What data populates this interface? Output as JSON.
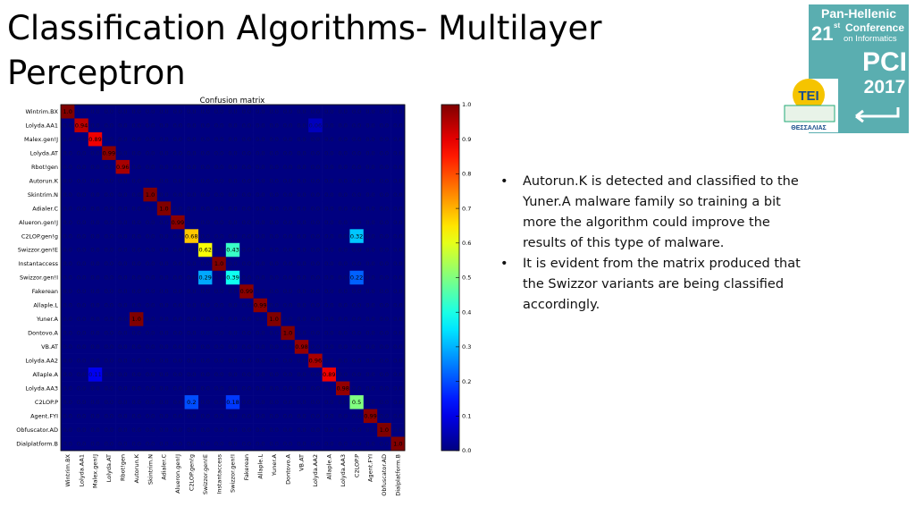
{
  "slide": {
    "title_lines": [
      "Classification Algorithms- Multilayer",
      "Perceptron"
    ],
    "bullets": [
      [
        "Autorun.K is detected and classified to the",
        "Yuner.A malware family so training a bit",
        "more the algorithm could improve the",
        "results of this type of malware."
      ],
      [
        "It is evident from the matrix produced that",
        "the Swizzor variants are being classified",
        "accordingly."
      ]
    ],
    "logo": {
      "line1": "Pan-Hellenic",
      "edition": "21",
      "edition_suffix": "st",
      "line2": "Conference",
      "line3": "on Informatics",
      "acronym": "PCI",
      "year": "2017",
      "tei": "TEI",
      "tei_sub": "ΘΕΣΣΑΛΙΑΣ"
    }
  },
  "chart_data": {
    "type": "heatmap",
    "title": "Confusion matrix",
    "colormap": "jet",
    "categories": [
      "Wintrim.BX",
      "Lolyda.AA1",
      "Malex.gen!J",
      "Lolyda.AT",
      "Rbot!gen",
      "Autorun.K",
      "Skintrim.N",
      "Adialer.C",
      "Alueron.gen!J",
      "C2LOP.gen!g",
      "Swizzor.gen!E",
      "Instantaccess",
      "Swizzor.gen!I",
      "Fakerean",
      "Allaple.L",
      "Yuner.A",
      "Dontovo.A",
      "VB.AT",
      "Lolyda.AA2",
      "Allaple.A",
      "Lolyda.AA3",
      "C2LOP.P",
      "Agent.FYI",
      "Obfuscator.AD",
      "Dialplatform.B"
    ],
    "zlim": [
      0,
      1
    ],
    "zticks": [
      {
        "value": 0,
        "label": "0.0"
      },
      {
        "value": 0.1,
        "label": "0.1"
      },
      {
        "value": 0.2,
        "label": "0.2"
      },
      {
        "value": 0.3,
        "label": "0.3"
      },
      {
        "value": 0.4,
        "label": "0.4"
      },
      {
        "value": 0.5,
        "label": "0.5"
      },
      {
        "value": 0.6,
        "label": "0.6"
      },
      {
        "value": 0.7,
        "label": "0.7"
      },
      {
        "value": 0.8,
        "label": "0.8"
      },
      {
        "value": 0.9,
        "label": "0.9"
      },
      {
        "value": 1,
        "label": "1.0"
      }
    ],
    "values": [
      [
        1,
        0,
        0,
        0,
        0,
        0,
        0,
        0,
        0,
        0,
        0,
        0,
        0,
        0,
        0,
        0,
        0,
        0,
        0,
        0,
        0,
        0,
        0,
        0,
        0
      ],
      [
        0,
        0.94,
        0,
        0,
        0,
        0,
        0,
        0,
        0,
        0,
        0,
        0,
        0,
        0,
        0,
        0,
        0,
        0,
        0.06,
        0,
        0,
        0,
        0,
        0,
        0
      ],
      [
        0,
        0,
        0.89,
        0,
        0,
        0,
        0,
        0,
        0,
        0,
        0,
        0,
        0,
        0,
        0,
        0,
        0,
        0,
        0,
        0,
        0,
        0,
        0,
        0,
        0
      ],
      [
        0,
        0,
        0,
        0.99,
        0,
        0,
        0,
        0,
        0,
        0,
        0,
        0,
        0,
        0,
        0,
        0,
        0,
        0,
        0,
        0,
        0,
        0,
        0,
        0,
        0
      ],
      [
        0,
        0,
        0,
        0,
        0.96,
        0,
        0,
        0,
        0,
        0,
        0,
        0,
        0,
        0,
        0,
        0,
        0,
        0,
        0,
        0,
        0,
        0,
        0,
        0,
        0
      ],
      [
        0,
        0,
        0,
        0,
        0,
        0,
        0,
        0,
        0,
        0,
        0,
        0,
        0,
        0,
        0,
        0,
        0,
        0,
        0,
        0,
        0,
        0,
        0,
        0,
        0
      ],
      [
        0,
        0,
        0,
        0,
        0,
        0,
        1,
        0,
        0,
        0,
        0,
        0,
        0,
        0,
        0,
        0,
        0,
        0,
        0,
        0,
        0,
        0,
        0,
        0,
        0
      ],
      [
        0,
        0,
        0,
        0,
        0,
        0,
        0,
        1,
        0,
        0,
        0,
        0,
        0,
        0,
        0,
        0,
        0,
        0,
        0,
        0,
        0,
        0,
        0,
        0,
        0
      ],
      [
        0,
        0,
        0,
        0,
        0,
        0,
        0,
        0,
        0.99,
        0,
        0,
        0,
        0,
        0,
        0,
        0,
        0,
        0,
        0,
        0,
        0,
        0,
        0,
        0,
        0
      ],
      [
        0,
        0,
        0,
        0,
        0,
        0,
        0,
        0,
        0,
        0.68,
        0,
        0,
        0,
        0,
        0,
        0,
        0,
        0,
        0,
        0,
        0,
        0.32,
        0,
        0,
        0
      ],
      [
        0,
        0,
        0,
        0,
        0,
        0,
        0,
        0,
        0,
        0,
        0.62,
        0,
        0.43,
        0,
        0,
        0,
        0,
        0,
        0,
        0,
        0,
        0,
        0,
        0,
        0
      ],
      [
        0,
        0,
        0,
        0,
        0,
        0,
        0,
        0,
        0,
        0,
        0,
        1,
        0,
        0,
        0,
        0,
        0,
        0,
        0,
        0,
        0,
        0,
        0,
        0,
        0
      ],
      [
        0,
        0,
        0,
        0,
        0,
        0,
        0,
        0,
        0,
        0,
        0.29,
        0,
        0.39,
        0,
        0,
        0,
        0,
        0,
        0,
        0,
        0,
        0.22,
        0,
        0,
        0
      ],
      [
        0,
        0,
        0,
        0,
        0,
        0,
        0,
        0,
        0,
        0,
        0,
        0,
        0,
        0.99,
        0,
        0,
        0,
        0,
        0,
        0,
        0,
        0,
        0,
        0,
        0
      ],
      [
        0,
        0,
        0,
        0,
        0,
        0,
        0,
        0,
        0,
        0,
        0,
        0,
        0,
        0,
        0.99,
        0,
        0,
        0,
        0,
        0,
        0,
        0,
        0,
        0,
        0
      ],
      [
        0,
        0,
        0,
        0,
        0,
        1,
        0,
        0,
        0,
        0,
        0,
        0,
        0,
        0,
        0,
        1,
        0,
        0,
        0,
        0,
        0,
        0,
        0,
        0,
        0
      ],
      [
        0,
        0,
        0,
        0,
        0,
        0,
        0,
        0,
        0,
        0,
        0,
        0,
        0,
        0,
        0,
        0,
        1,
        0,
        0,
        0,
        0,
        0,
        0,
        0,
        0
      ],
      [
        0,
        0,
        0,
        0,
        0,
        0,
        0,
        0,
        0,
        0,
        0,
        0,
        0,
        0,
        0,
        0,
        0,
        0.98,
        0,
        0,
        0,
        0,
        0,
        0,
        0
      ],
      [
        0,
        0,
        0,
        0,
        0,
        0,
        0,
        0,
        0,
        0,
        0,
        0,
        0,
        0,
        0,
        0,
        0,
        0,
        0.96,
        0,
        0,
        0,
        0,
        0,
        0
      ],
      [
        0,
        0,
        0.11,
        0,
        0,
        0,
        0,
        0,
        0,
        0,
        0,
        0,
        0,
        0,
        0,
        0,
        0,
        0,
        0,
        0.89,
        0,
        0,
        0,
        0,
        0
      ],
      [
        0,
        0,
        0,
        0,
        0,
        0,
        0,
        0,
        0,
        0,
        0,
        0,
        0,
        0,
        0,
        0,
        0,
        0,
        0,
        0,
        0.98,
        0,
        0,
        0,
        0
      ],
      [
        0,
        0,
        0,
        0,
        0,
        0,
        0,
        0,
        0,
        0.2,
        0,
        0,
        0.18,
        0,
        0,
        0,
        0,
        0,
        0,
        0,
        0,
        0.5,
        0,
        0,
        0
      ],
      [
        0,
        0,
        0,
        0,
        0,
        0,
        0,
        0,
        0,
        0,
        0,
        0,
        0,
        0,
        0,
        0,
        0,
        0,
        0,
        0,
        0,
        0,
        0.99,
        0,
        0
      ],
      [
        0,
        0,
        0,
        0,
        0,
        0,
        0,
        0,
        0,
        0,
        0,
        0,
        0,
        0,
        0,
        0,
        0,
        0,
        0,
        0,
        0,
        0,
        0,
        1,
        0
      ],
      [
        0,
        0,
        0,
        0,
        0,
        0,
        0,
        0,
        0,
        0,
        0,
        0,
        0,
        0,
        0,
        0,
        0,
        0,
        0,
        0,
        0,
        0,
        0,
        0,
        1
      ]
    ],
    "value_labels": [
      [
        "1.0",
        "0.0",
        "0.0",
        "0.0",
        "0.0",
        "0.0",
        "0.0",
        "0.0",
        "0.0",
        "0.0",
        "0.0",
        "0.0",
        "0.0",
        "0.0",
        "0.0",
        "0.0",
        "0.0",
        "0.0",
        "0.0",
        "0.0",
        "0.0",
        "0.0",
        "0.0",
        "0.0",
        "0.0"
      ],
      [
        "0.0",
        "0.94",
        "0.0",
        "0.0",
        "0.0",
        "0.0",
        "0.0",
        "0.0",
        "0.0",
        "0.0",
        "0.0",
        "0.0",
        "0.0",
        "0.0",
        "0.0",
        "0.0",
        "0.0",
        "0.0",
        "0.06",
        "0.0",
        "0.0",
        "0.0",
        "0.0",
        "0.0",
        "0.0"
      ],
      [
        "0.0",
        "0.0",
        "0.89",
        "0.0",
        "0.0",
        "0.0",
        "0.0",
        "0.0",
        "0.0",
        "0.0",
        "0.0",
        "0.0",
        "0.0",
        "0.0",
        "0.0",
        "0.0",
        "0.0",
        "0.0",
        "0.0",
        "0.0",
        "0.0",
        "0.0",
        "0.0",
        "0.0",
        "0.0"
      ],
      [
        "0.0",
        "0.0",
        "0.0",
        "0.99",
        "0.0",
        "0.0",
        "0.0",
        "0.0",
        "0.0",
        "0.0",
        "0.0",
        "0.0",
        "0.0",
        "0.0",
        "0.0",
        "0.0",
        "0.0",
        "0.0",
        "0.0",
        "0.0",
        "0.0",
        "0.0",
        "0.0",
        "0.0",
        "0.0"
      ],
      [
        "0.0",
        "0.0",
        "0.0",
        "0.0",
        "0.96",
        "0.0",
        "0.0",
        "0.0",
        "0.0",
        "0.0",
        "0.0",
        "0.0",
        "0.0",
        "0.0",
        "0.0",
        "0.0",
        "0.0",
        "0.0",
        "0.0",
        "0.0",
        "0.0",
        "0.0",
        "0.0",
        "0.0",
        "0.0"
      ],
      [
        "0.0",
        "0.0",
        "0.0",
        "0.0",
        "0.0",
        "0.0",
        "0.0",
        "0.0",
        "0.0",
        "0.0",
        "0.0",
        "0.0",
        "0.0",
        "0.0",
        "0.0",
        "0.0",
        "0.0",
        "0.0",
        "0.0",
        "0.0",
        "0.0",
        "0.0",
        "0.0",
        "0.0",
        "0.0"
      ],
      [
        "0.0",
        "0.0",
        "0.0",
        "0.0",
        "0.0",
        "0.0",
        "1.0",
        "0.0",
        "0.0",
        "0.0",
        "0.0",
        "0.0",
        "0.0",
        "0.0",
        "0.0",
        "0.0",
        "0.0",
        "0.0",
        "0.0",
        "0.0",
        "0.0",
        "0.0",
        "0.0",
        "0.0",
        "0.0"
      ],
      [
        "0.0",
        "0.0",
        "0.0",
        "0.0",
        "0.0",
        "0.0",
        "0.0",
        "1.0",
        "0.0",
        "0.0",
        "0.0",
        "0.0",
        "0.0",
        "0.0",
        "0.0",
        "0.0",
        "0.0",
        "0.0",
        "0.0",
        "0.0",
        "0.0",
        "0.0",
        "0.0",
        "0.0",
        "0.0"
      ],
      [
        "0.0",
        "0.0",
        "0.0",
        "0.0",
        "0.0",
        "0.0",
        "0.0",
        "0.0",
        "0.99",
        "0.0",
        "0.0",
        "0.0",
        "0.0",
        "0.0",
        "0.0",
        "0.0",
        "0.0",
        "0.0",
        "0.0",
        "0.0",
        "0.0",
        "0.0",
        "0.0",
        "0.0",
        "0.0"
      ],
      [
        "0.0",
        "0.0",
        "0.0",
        "0.0",
        "0.0",
        "0.0",
        "0.0",
        "0.0",
        "0.0",
        "0.68",
        "0.0",
        "0.0",
        "0.0",
        "0.0",
        "0.0",
        "0.0",
        "0.0",
        "0.0",
        "0.0",
        "0.0",
        "0.0",
        "0.32",
        "0.0",
        "0.0",
        "0.0"
      ],
      [
        "0.0",
        "0.0",
        "0.0",
        "0.0",
        "0.0",
        "0.0",
        "0.0",
        "0.0",
        "0.0",
        "0.0",
        "0.62",
        "0.0",
        "0.43",
        "0.0",
        "0.0",
        "0.0",
        "0.0",
        "0.0",
        "0.0",
        "0.0",
        "0.0",
        "0.0",
        "0.0",
        "0.0",
        "0.0"
      ],
      [
        "0.0",
        "0.0",
        "0.0",
        "0.0",
        "0.0",
        "0.0",
        "0.0",
        "0.0",
        "0.0",
        "0.0",
        "0.0",
        "1.0",
        "0.0",
        "0.0",
        "0.0",
        "0.0",
        "0.0",
        "0.0",
        "0.0",
        "0.0",
        "0.0",
        "0.0",
        "0.0",
        "0.0",
        "0.0"
      ],
      [
        "0.0",
        "0.0",
        "0.0",
        "0.0",
        "0.0",
        "0.0",
        "0.0",
        "0.0",
        "0.0",
        "0.0",
        "0.29",
        "0.0",
        "0.39",
        "0.0",
        "0.0",
        "0.0",
        "0.0",
        "0.0",
        "0.0",
        "0.0",
        "0.0",
        "0.22",
        "0.0",
        "0.0",
        "0.0"
      ],
      [
        "0.0",
        "0.0",
        "0.0",
        "0.0",
        "0.0",
        "0.0",
        "0.0",
        "0.0",
        "0.0",
        "0.0",
        "0.0",
        "0.0",
        "0.0",
        "0.99",
        "0.0",
        "0.0",
        "0.0",
        "0.0",
        "0.0",
        "0.0",
        "0.0",
        "0.0",
        "0.0",
        "0.0",
        "0.0"
      ],
      [
        "0.0",
        "0.0",
        "0.0",
        "0.0",
        "0.0",
        "0.0",
        "0.0",
        "0.0",
        "0.0",
        "0.0",
        "0.0",
        "0.0",
        "0.0",
        "0.0",
        "0.99",
        "0.0",
        "0.0",
        "0.0",
        "0.0",
        "0.0",
        "0.0",
        "0.0",
        "0.0",
        "0.0",
        "0.0"
      ],
      [
        "0.0",
        "0.0",
        "0.0",
        "0.0",
        "0.0",
        "1.0",
        "0.0",
        "0.0",
        "0.0",
        "0.0",
        "0.0",
        "0.0",
        "0.0",
        "0.0",
        "0.0",
        "1.0",
        "0.0",
        "0.0",
        "0.0",
        "0.0",
        "0.0",
        "0.0",
        "0.0",
        "0.0",
        "0.0"
      ],
      [
        "0.0",
        "0.0",
        "0.0",
        "0.0",
        "0.0",
        "0.0",
        "0.0",
        "0.0",
        "0.0",
        "0.0",
        "0.0",
        "0.0",
        "0.0",
        "0.0",
        "0.0",
        "0.0",
        "1.0",
        "0.0",
        "0.0",
        "0.0",
        "0.0",
        "0.0",
        "0.0",
        "0.0",
        "0.0"
      ],
      [
        "0.0",
        "0.0",
        "0.0",
        "0.0",
        "0.0",
        "0.0",
        "0.0",
        "0.0",
        "0.0",
        "0.0",
        "0.0",
        "0.0",
        "0.0",
        "0.0",
        "0.0",
        "0.0",
        "0.0",
        "0.98",
        "0.0",
        "0.0",
        "0.0",
        "0.0",
        "0.0",
        "0.0",
        "0.0"
      ],
      [
        "0.0",
        "0.0",
        "0.0",
        "0.0",
        "0.0",
        "0.0",
        "0.0",
        "0.0",
        "0.0",
        "0.0",
        "0.0",
        "0.0",
        "0.0",
        "0.0",
        "0.0",
        "0.0",
        "0.0",
        "0.0",
        "0.96",
        "0.0",
        "0.0",
        "0.0",
        "0.0",
        "0.0",
        "0.0"
      ],
      [
        "0.0",
        "0.0",
        "0.11",
        "0.0",
        "0.0",
        "0.0",
        "0.0",
        "0.0",
        "0.0",
        "0.0",
        "0.0",
        "0.0",
        "0.0",
        "0.0",
        "0.0",
        "0.0",
        "0.0",
        "0.0",
        "0.0",
        "0.89",
        "0.0",
        "0.0",
        "0.0",
        "0.0",
        "0.0"
      ],
      [
        "0.0",
        "0.0",
        "0.0",
        "0.0",
        "0.0",
        "0.0",
        "0.0",
        "0.0",
        "0.0",
        "0.0",
        "0.0",
        "0.0",
        "0.0",
        "0.0",
        "0.0",
        "0.0",
        "0.0",
        "0.0",
        "0.0",
        "0.0",
        "0.98",
        "0.0",
        "0.0",
        "0.0",
        "0.0"
      ],
      [
        "0.0",
        "0.0",
        "0.0",
        "0.0",
        "0.0",
        "0.0",
        "0.0",
        "0.0",
        "0.0",
        "0.2",
        "0.0",
        "0.0",
        "0.18",
        "0.0",
        "0.0",
        "0.0",
        "0.0",
        "0.0",
        "0.0",
        "0.0",
        "0.0",
        "0.5",
        "0.0",
        "0.0",
        "0.0"
      ],
      [
        "0.0",
        "0.0",
        "0.0",
        "0.0",
        "0.0",
        "0.0",
        "0.0",
        "0.0",
        "0.0",
        "0.0",
        "0.0",
        "0.0",
        "0.0",
        "0.0",
        "0.0",
        "0.0",
        "0.0",
        "0.0",
        "0.0",
        "0.0",
        "0.0",
        "0.0",
        "0.99",
        "0.0",
        "0.0"
      ],
      [
        "0.0",
        "0.0",
        "0.0",
        "0.0",
        "0.0",
        "0.0",
        "0.0",
        "0.0",
        "0.0",
        "0.0",
        "0.0",
        "0.0",
        "0.0",
        "0.0",
        "0.0",
        "0.0",
        "0.0",
        "0.0",
        "0.0",
        "0.0",
        "0.0",
        "0.0",
        "0.0",
        "1.0",
        "0.0"
      ],
      [
        "0.0",
        "0.0",
        "0.0",
        "0.0",
        "0.0",
        "0.0",
        "0.0",
        "0.0",
        "0.0",
        "0.0",
        "0.0",
        "0.0",
        "0.0",
        "0.0",
        "0.0",
        "0.0",
        "0.0",
        "0.0",
        "0.0",
        "0.0",
        "0.0",
        "0.0",
        "0.0",
        "0.0",
        "1.0"
      ]
    ]
  }
}
